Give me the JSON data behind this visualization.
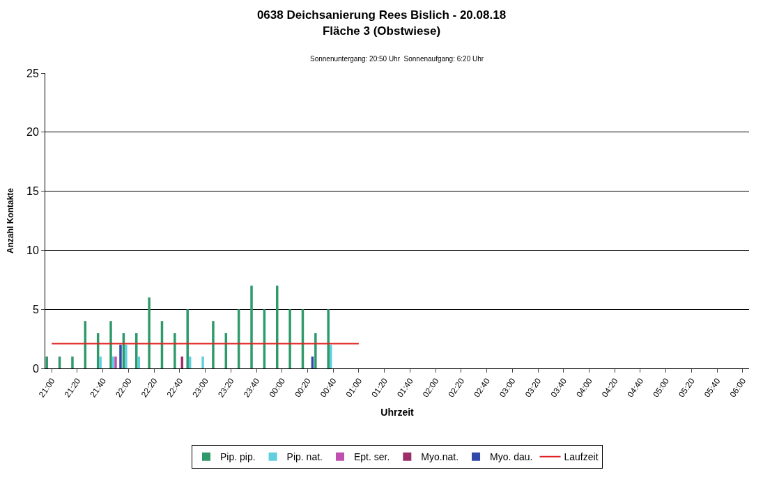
{
  "chart_data": {
    "type": "bar",
    "title": "0638 Deichsanierung Rees Bislich - 20.08.18\nFläche 3 (Obstwiese)",
    "subtitle": "Sonnenuntergang: 20:50 Uhr  Sonnenaufgang: 6:20 Uhr",
    "xlabel": "Uhrzeit",
    "ylabel": "Anzahl Kontakte",
    "categories": [
      "21:00",
      null,
      "21:20",
      null,
      "21:40",
      null,
      "22:00",
      null,
      "22:20",
      null,
      "22:40",
      null,
      "23:00",
      null,
      "23:20",
      null,
      "23:40",
      null,
      "00:00",
      null,
      "00:20",
      null,
      "00:40",
      null,
      "01:00",
      null,
      "01:20",
      null,
      "01:40",
      null,
      "02:00",
      null,
      "02:20",
      null,
      "02:40",
      null,
      "03:00",
      null,
      "03:20",
      null,
      "03:40",
      null,
      "04:00",
      null,
      "04:20",
      null,
      "04:40",
      null,
      "05:00",
      null,
      "05:20",
      null,
      "05:40",
      null,
      "06:00"
    ],
    "series": [
      {
        "name": "Pip. pip.",
        "color": "#2e9a6a",
        "values": [
          1,
          1,
          1,
          4,
          3,
          4,
          3,
          3,
          6,
          4,
          3,
          5,
          0,
          4,
          3,
          5,
          7,
          5,
          7,
          5,
          5,
          3,
          5,
          0,
          0,
          0,
          0,
          0,
          0,
          0,
          0,
          0,
          0,
          0,
          0,
          0,
          0,
          0,
          0,
          0,
          0,
          0,
          0,
          0,
          0,
          0,
          0,
          0,
          0,
          0,
          0,
          0,
          0,
          0,
          0
        ]
      },
      {
        "name": "Pip. nat.",
        "color": "#5fcfdf",
        "values": [
          0,
          0,
          0,
          0,
          1,
          1,
          2,
          1,
          0,
          0,
          0,
          1,
          1,
          0,
          0,
          0,
          0,
          0,
          0,
          0,
          0,
          0,
          2,
          0,
          0,
          0,
          0,
          0,
          0,
          0,
          0,
          0,
          0,
          0,
          0,
          0,
          0,
          0,
          0,
          0,
          0,
          0,
          0,
          0,
          0,
          0,
          0,
          0,
          0,
          0,
          0,
          0,
          0,
          0,
          0
        ]
      },
      {
        "name": "Ept. ser.",
        "color": "#c050b0",
        "values": [
          0,
          0,
          0,
          0,
          0,
          1,
          0,
          0,
          0,
          0,
          0,
          0,
          0,
          0,
          0,
          0,
          0,
          0,
          0,
          0,
          0,
          0,
          0,
          0,
          0,
          0,
          0,
          0,
          0,
          0,
          0,
          0,
          0,
          0,
          0,
          0,
          0,
          0,
          0,
          0,
          0,
          0,
          0,
          0,
          0,
          0,
          0,
          0,
          0,
          0,
          0,
          0,
          0,
          0,
          0
        ]
      },
      {
        "name": "Myo.nat.",
        "color": "#9a2f6a",
        "values": [
          0,
          0,
          0,
          0,
          0,
          0,
          0,
          0,
          0,
          0,
          1,
          0,
          0,
          0,
          0,
          0,
          0,
          0,
          0,
          0,
          0,
          0,
          0,
          0,
          0,
          0,
          0,
          0,
          0,
          0,
          0,
          0,
          0,
          0,
          0,
          0,
          0,
          0,
          0,
          0,
          0,
          0,
          0,
          0,
          0,
          0,
          0,
          0,
          0,
          0,
          0,
          0,
          0,
          0,
          0
        ]
      },
      {
        "name": "Myo. dau.",
        "color": "#3048a8",
        "values": [
          0,
          0,
          0,
          0,
          0,
          2,
          0,
          0,
          0,
          0,
          0,
          0,
          0,
          0,
          0,
          0,
          0,
          0,
          0,
          0,
          1,
          0,
          0,
          0,
          0,
          0,
          0,
          0,
          0,
          0,
          0,
          0,
          0,
          0,
          0,
          0,
          0,
          0,
          0,
          0,
          0,
          0,
          0,
          0,
          0,
          0,
          0,
          0,
          0,
          0,
          0,
          0,
          0,
          0,
          0
        ]
      },
      {
        "name": "Laufzeit",
        "type": "line",
        "color": "#e02020",
        "values": [
          2.1,
          2.1,
          2.1,
          2.1,
          2.1,
          2.1,
          2.1,
          2.1,
          2.1,
          2.1,
          2.1,
          2.1,
          2.1,
          2.1,
          2.1,
          2.1,
          2.1,
          2.1,
          2.1,
          2.1,
          2.1,
          2.1,
          2.1,
          2.1,
          2.1,
          null,
          null,
          null,
          null,
          null,
          null,
          null,
          null,
          null,
          null,
          null,
          null,
          null,
          null,
          null,
          null,
          null,
          null,
          null,
          null,
          null,
          null,
          null,
          null,
          null,
          null,
          null,
          null,
          null,
          null
        ]
      }
    ],
    "ylim": [
      0,
      25
    ],
    "yticks": [
      0,
      5,
      10,
      15,
      20,
      25
    ],
    "grid": "y",
    "legend": "bottom"
  }
}
